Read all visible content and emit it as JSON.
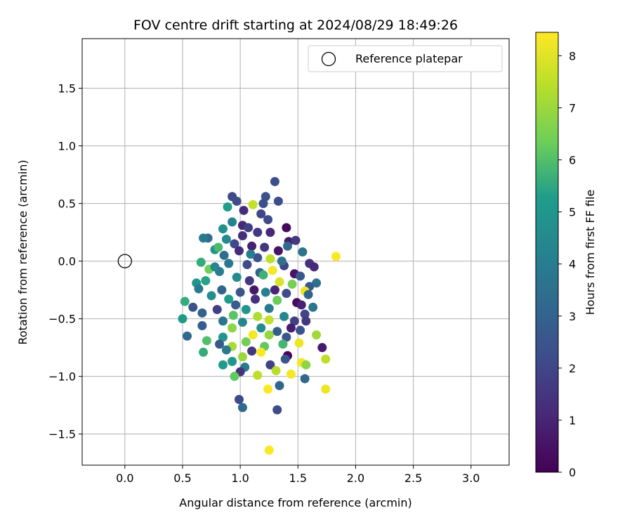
{
  "chart_data": {
    "type": "scatter",
    "title": "FOV centre drift starting at 2024/08/29 18:49:26",
    "xlabel": "Angular distance from reference (arcmin)",
    "ylabel": "Rotation from reference (arcmin)",
    "xlim": [
      -0.37,
      3.33
    ],
    "ylim": [
      -1.77,
      1.93
    ],
    "xticks": [
      "0.0",
      "0.5",
      "1.0",
      "1.5",
      "2.0",
      "2.5",
      "3.0"
    ],
    "xtick_values": [
      0.0,
      0.5,
      1.0,
      1.5,
      2.0,
      2.5,
      3.0
    ],
    "yticks": [
      "−1.5",
      "−1.0",
      "−0.5",
      "0.0",
      "0.5",
      "1.0",
      "1.5"
    ],
    "ytick_values": [
      -1.5,
      -1.0,
      -0.5,
      0.0,
      0.5,
      1.0,
      1.5
    ],
    "grid": true,
    "legend": {
      "position": "top-right",
      "entries": [
        "Reference platepar"
      ]
    },
    "reference_point": {
      "x": 0.0,
      "y": 0.0,
      "label": "Reference platepar"
    },
    "colorbar": {
      "label": "Hours from first FF file",
      "colormap": "viridis",
      "min": 0,
      "max": 8.45,
      "ticks": [
        "0",
        "1",
        "2",
        "3",
        "4",
        "5",
        "6",
        "7",
        "8"
      ],
      "tick_values": [
        0,
        1,
        2,
        3,
        4,
        5,
        6,
        7,
        8
      ]
    },
    "colors": {
      "viridis": [
        "#440154",
        "#482777",
        "#3f4a8a",
        "#31678e",
        "#26838f",
        "#1f9d8a",
        "#6cce5a",
        "#b6de2b",
        "#fee825"
      ]
    },
    "points": [
      {
        "x": 1.3,
        "y": 0.69,
        "t": 2.3
      },
      {
        "x": 0.93,
        "y": 0.56,
        "t": 2.1
      },
      {
        "x": 1.22,
        "y": 0.56,
        "t": 2.4
      },
      {
        "x": 0.97,
        "y": 0.52,
        "t": 2.2
      },
      {
        "x": 1.2,
        "y": 0.5,
        "t": 2.3
      },
      {
        "x": 1.33,
        "y": 0.52,
        "t": 2.2
      },
      {
        "x": 0.89,
        "y": 0.47,
        "t": 5.3
      },
      {
        "x": 1.11,
        "y": 0.49,
        "t": 7.6
      },
      {
        "x": 1.03,
        "y": 0.44,
        "t": 1.2
      },
      {
        "x": 1.18,
        "y": 0.41,
        "t": 2.0
      },
      {
        "x": 1.24,
        "y": 0.36,
        "t": 2.1
      },
      {
        "x": 0.93,
        "y": 0.34,
        "t": 4.2
      },
      {
        "x": 1.02,
        "y": 0.31,
        "t": 1.1
      },
      {
        "x": 1.07,
        "y": 0.29,
        "t": 1.8
      },
      {
        "x": 0.85,
        "y": 0.28,
        "t": 4.8
      },
      {
        "x": 1.4,
        "y": 0.29,
        "t": 0.2
      },
      {
        "x": 1.15,
        "y": 0.25,
        "t": 1.6
      },
      {
        "x": 1.02,
        "y": 0.22,
        "t": 1.3
      },
      {
        "x": 0.72,
        "y": 0.2,
        "t": 3.3
      },
      {
        "x": 0.68,
        "y": 0.2,
        "t": 3.9
      },
      {
        "x": 0.88,
        "y": 0.19,
        "t": 4.5
      },
      {
        "x": 1.42,
        "y": 0.17,
        "t": 0.7
      },
      {
        "x": 1.48,
        "y": 0.18,
        "t": 1.6
      },
      {
        "x": 0.95,
        "y": 0.15,
        "t": 2.1
      },
      {
        "x": 1.1,
        "y": 0.13,
        "t": 0.9
      },
      {
        "x": 1.21,
        "y": 0.12,
        "t": 1.5
      },
      {
        "x": 1.41,
        "y": 0.13,
        "t": 3.3
      },
      {
        "x": 0.78,
        "y": 0.1,
        "t": 4.9
      },
      {
        "x": 0.99,
        "y": 0.09,
        "t": 1.2
      },
      {
        "x": 1.33,
        "y": 0.09,
        "t": 0.5
      },
      {
        "x": 1.54,
        "y": 0.08,
        "t": 3.6
      },
      {
        "x": 1.83,
        "y": 0.04,
        "t": 8.4
      },
      {
        "x": 1.15,
        "y": 0.03,
        "t": 2.4
      },
      {
        "x": 1.26,
        "y": 0.02,
        "t": 7.5
      },
      {
        "x": 1.6,
        "y": -0.02,
        "t": 1.4
      },
      {
        "x": 0.66,
        "y": -0.01,
        "t": 5.6
      },
      {
        "x": 0.9,
        "y": -0.02,
        "t": 3.8
      },
      {
        "x": 1.06,
        "y": -0.03,
        "t": 2.2
      },
      {
        "x": 1.38,
        "y": -0.04,
        "t": 1.9
      },
      {
        "x": 1.64,
        "y": -0.05,
        "t": 1.1
      },
      {
        "x": 0.73,
        "y": -0.07,
        "t": 6.4
      },
      {
        "x": 0.82,
        "y": -0.09,
        "t": 4.0
      },
      {
        "x": 1.17,
        "y": -0.1,
        "t": 3.0
      },
      {
        "x": 1.28,
        "y": -0.08,
        "t": 8.3
      },
      {
        "x": 1.47,
        "y": -0.11,
        "t": 0.5
      },
      {
        "x": 1.52,
        "y": -0.13,
        "t": 2.6
      },
      {
        "x": 0.97,
        "y": -0.14,
        "t": 4.6
      },
      {
        "x": 0.62,
        "y": -0.19,
        "t": 4.9
      },
      {
        "x": 0.7,
        "y": -0.17,
        "t": 5.4
      },
      {
        "x": 1.08,
        "y": -0.17,
        "t": 1.5
      },
      {
        "x": 1.34,
        "y": -0.18,
        "t": 7.9
      },
      {
        "x": 1.66,
        "y": -0.19,
        "t": 3.5
      },
      {
        "x": 1.6,
        "y": -0.22,
        "t": 2.7
      },
      {
        "x": 0.64,
        "y": -0.24,
        "t": 3.9
      },
      {
        "x": 0.84,
        "y": -0.25,
        "t": 3.1
      },
      {
        "x": 1.0,
        "y": -0.27,
        "t": 2.5
      },
      {
        "x": 1.22,
        "y": -0.27,
        "t": 4.2
      },
      {
        "x": 1.4,
        "y": -0.28,
        "t": 2.2
      },
      {
        "x": 1.56,
        "y": -0.26,
        "t": 8.2
      },
      {
        "x": 1.59,
        "y": -0.29,
        "t": 3.1
      },
      {
        "x": 0.9,
        "y": -0.33,
        "t": 5.2
      },
      {
        "x": 1.13,
        "y": -0.33,
        "t": 1.3
      },
      {
        "x": 1.32,
        "y": -0.34,
        "t": 6.3
      },
      {
        "x": 1.49,
        "y": -0.36,
        "t": 0.3
      },
      {
        "x": 0.52,
        "y": -0.35,
        "t": 5.6
      },
      {
        "x": 0.59,
        "y": -0.4,
        "t": 2.4
      },
      {
        "x": 0.8,
        "y": -0.42,
        "t": 1.8
      },
      {
        "x": 1.05,
        "y": -0.42,
        "t": 5.0
      },
      {
        "x": 1.25,
        "y": -0.41,
        "t": 3.9
      },
      {
        "x": 1.53,
        "y": -0.38,
        "t": 0.9
      },
      {
        "x": 1.63,
        "y": -0.4,
        "t": 3.7
      },
      {
        "x": 0.67,
        "y": -0.45,
        "t": 3.0
      },
      {
        "x": 0.94,
        "y": -0.47,
        "t": 6.1
      },
      {
        "x": 1.15,
        "y": -0.48,
        "t": 7.3
      },
      {
        "x": 1.38,
        "y": -0.48,
        "t": 4.4
      },
      {
        "x": 1.56,
        "y": -0.46,
        "t": 2.0
      },
      {
        "x": 0.5,
        "y": -0.5,
        "t": 5.2
      },
      {
        "x": 0.85,
        "y": -0.52,
        "t": 3.7
      },
      {
        "x": 1.02,
        "y": -0.53,
        "t": 4.4
      },
      {
        "x": 1.25,
        "y": -0.51,
        "t": 7.6
      },
      {
        "x": 1.47,
        "y": -0.52,
        "t": 1.8
      },
      {
        "x": 1.57,
        "y": -0.52,
        "t": 1.6
      },
      {
        "x": 0.67,
        "y": -0.56,
        "t": 2.8
      },
      {
        "x": 0.93,
        "y": -0.58,
        "t": 6.8
      },
      {
        "x": 1.18,
        "y": -0.58,
        "t": 4.6
      },
      {
        "x": 1.32,
        "y": -0.61,
        "t": 2.9
      },
      {
        "x": 1.52,
        "y": -0.6,
        "t": 2.4
      },
      {
        "x": 1.11,
        "y": -0.64,
        "t": 8.3
      },
      {
        "x": 1.25,
        "y": -0.64,
        "t": 6.9
      },
      {
        "x": 1.66,
        "y": -0.64,
        "t": 7.1
      },
      {
        "x": 0.54,
        "y": -0.65,
        "t": 3.2
      },
      {
        "x": 0.85,
        "y": -0.66,
        "t": 5.0
      },
      {
        "x": 1.4,
        "y": -0.66,
        "t": 2.6
      },
      {
        "x": 0.71,
        "y": -0.69,
        "t": 6.0
      },
      {
        "x": 1.05,
        "y": -0.7,
        "t": 6.4
      },
      {
        "x": 1.51,
        "y": -0.71,
        "t": 8.2
      },
      {
        "x": 0.82,
        "y": -0.72,
        "t": 2.7
      },
      {
        "x": 0.93,
        "y": -0.74,
        "t": 7.2
      },
      {
        "x": 1.21,
        "y": -0.74,
        "t": 6.2
      },
      {
        "x": 1.71,
        "y": -0.75,
        "t": 0.7
      },
      {
        "x": 0.88,
        "y": -0.77,
        "t": 3.9
      },
      {
        "x": 1.18,
        "y": -0.79,
        "t": 8.4
      },
      {
        "x": 0.68,
        "y": -0.79,
        "t": 5.6
      },
      {
        "x": 1.41,
        "y": -0.82,
        "t": 0.2
      },
      {
        "x": 1.02,
        "y": -0.83,
        "t": 7.0
      },
      {
        "x": 1.39,
        "y": -0.85,
        "t": 2.5
      },
      {
        "x": 1.74,
        "y": -0.85,
        "t": 7.5
      },
      {
        "x": 0.93,
        "y": -0.87,
        "t": 5.0
      },
      {
        "x": 1.53,
        "y": -0.88,
        "t": 8.3
      },
      {
        "x": 1.57,
        "y": -0.9,
        "t": 6.8
      },
      {
        "x": 0.85,
        "y": -0.9,
        "t": 5.2
      },
      {
        "x": 1.26,
        "y": -0.9,
        "t": 1.9
      },
      {
        "x": 1.04,
        "y": -0.92,
        "t": 3.9
      },
      {
        "x": 1.31,
        "y": -0.95,
        "t": 7.4
      },
      {
        "x": 1.0,
        "y": -0.96,
        "t": 1.4
      },
      {
        "x": 1.15,
        "y": -0.99,
        "t": 7.5
      },
      {
        "x": 1.44,
        "y": -0.98,
        "t": 8.3
      },
      {
        "x": 0.95,
        "y": -1.0,
        "t": 6.2
      },
      {
        "x": 1.56,
        "y": -1.02,
        "t": 3.2
      },
      {
        "x": 1.34,
        "y": -1.08,
        "t": 3.1
      },
      {
        "x": 1.24,
        "y": -1.11,
        "t": 8.4
      },
      {
        "x": 1.74,
        "y": -1.11,
        "t": 8.2
      },
      {
        "x": 0.99,
        "y": -1.2,
        "t": 2.1
      },
      {
        "x": 1.02,
        "y": -1.27,
        "t": 3.3
      },
      {
        "x": 1.32,
        "y": -1.29,
        "t": 2.2
      },
      {
        "x": 1.25,
        "y": -1.64,
        "t": 8.4
      },
      {
        "x": 0.78,
        "y": -0.05,
        "t": 4.3
      },
      {
        "x": 0.86,
        "y": 0.05,
        "t": 3.4
      },
      {
        "x": 1.12,
        "y": -0.25,
        "t": 0.6
      },
      {
        "x": 1.2,
        "y": -0.12,
        "t": 5.7
      },
      {
        "x": 1.45,
        "y": -0.2,
        "t": 6.5
      },
      {
        "x": 0.75,
        "y": -0.3,
        "t": 4.7
      },
      {
        "x": 1.3,
        "y": -0.25,
        "t": 1.0
      },
      {
        "x": 1.36,
        "y": 0.0,
        "t": 3.6
      },
      {
        "x": 0.96,
        "y": -0.38,
        "t": 2.8
      },
      {
        "x": 1.09,
        "y": 0.06,
        "t": 4.0
      },
      {
        "x": 1.26,
        "y": 0.25,
        "t": 1.1
      },
      {
        "x": 0.81,
        "y": 0.12,
        "t": 5.9
      },
      {
        "x": 1.44,
        "y": -0.58,
        "t": 0.8
      },
      {
        "x": 1.1,
        "y": -0.78,
        "t": 1.5
      },
      {
        "x": 1.37,
        "y": -0.72,
        "t": 5.8
      }
    ]
  }
}
